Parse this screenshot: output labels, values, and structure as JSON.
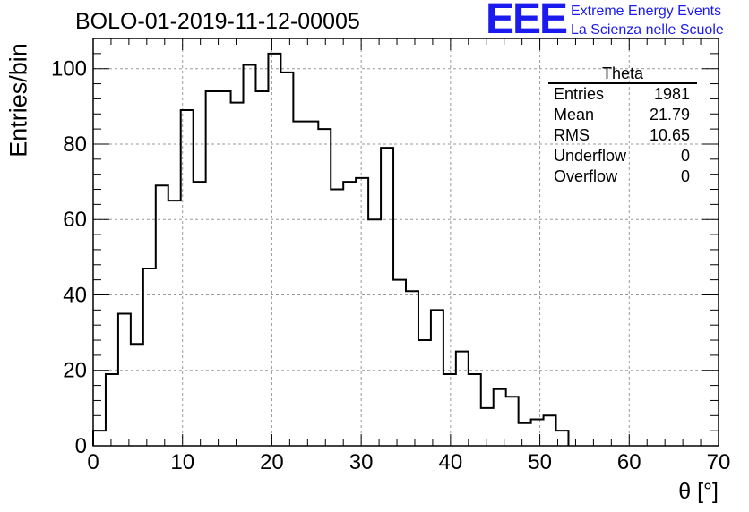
{
  "chart_data": {
    "type": "histogram",
    "title": "BOLO-01-2019-11-12-00005",
    "xlabel": "θ [°]",
    "ylabel": "Entries/bin",
    "xlim": [
      0,
      70
    ],
    "ylim": [
      0,
      108
    ],
    "x_ticks": [
      0,
      10,
      20,
      30,
      40,
      50,
      60,
      70
    ],
    "y_ticks": [
      0,
      20,
      40,
      60,
      80,
      100
    ],
    "grid": true,
    "bin_width": 1.4,
    "bin_start": 0,
    "values": [
      4,
      19,
      35,
      27,
      47,
      69,
      65,
      89,
      70,
      94,
      94,
      91,
      101,
      94,
      104,
      99,
      86,
      86,
      84,
      68,
      70,
      71,
      60,
      79,
      44,
      41,
      28,
      36,
      19,
      25,
      19,
      10,
      15,
      13,
      6,
      7,
      8,
      4
    ]
  },
  "logo": {
    "mark": "EEE",
    "line1": "Extreme Energy Events",
    "line2": "La Scienza nelle Scuole"
  },
  "stats": {
    "title": "Theta",
    "rows": [
      {
        "label": "Entries",
        "value": "1981"
      },
      {
        "label": "Mean",
        "value": "21.79"
      },
      {
        "label": "RMS",
        "value": "10.65"
      },
      {
        "label": "Underflow",
        "value": "0"
      },
      {
        "label": "Overflow",
        "value": "0"
      }
    ]
  }
}
